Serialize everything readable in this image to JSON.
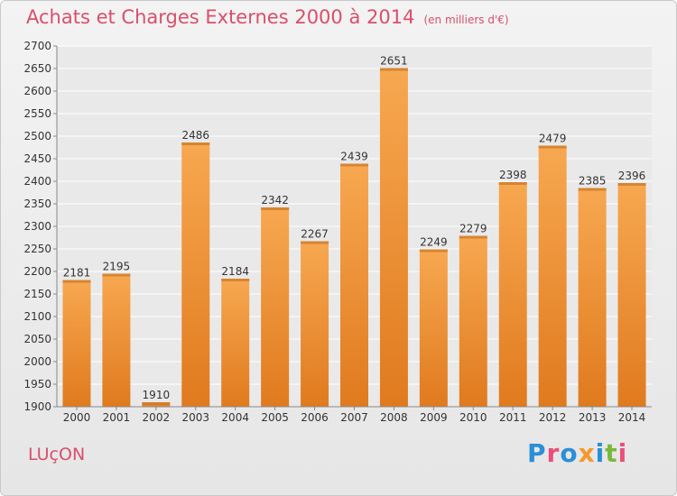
{
  "header": {
    "title": "Achats et Charges Externes 2000 à 2014",
    "subtitle": "(en milliers d'€)"
  },
  "footer": {
    "commune": "LUçON",
    "logo_letters": [
      {
        "ch": "P",
        "color": "#2a8fd6"
      },
      {
        "ch": "r",
        "color": "#e94f7a"
      },
      {
        "ch": "o",
        "color": "#2a8fd6"
      },
      {
        "ch": "x",
        "color": "#f39a2b"
      },
      {
        "ch": "i",
        "color": "#2a8fd6"
      },
      {
        "ch": "t",
        "color": "#7ab83c"
      },
      {
        "ch": "i",
        "color": "#e94f7a"
      }
    ]
  },
  "chart_data": {
    "type": "bar",
    "categories": [
      "2000",
      "2001",
      "2002",
      "2003",
      "2004",
      "2005",
      "2006",
      "2007",
      "2008",
      "2009",
      "2010",
      "2011",
      "2012",
      "2013",
      "2014"
    ],
    "values": [
      2181,
      2195,
      1910,
      2486,
      2184,
      2342,
      2267,
      2439,
      2651,
      2249,
      2279,
      2398,
      2479,
      2385,
      2396
    ],
    "ylim": [
      1900,
      2700
    ],
    "yticks": [
      1900,
      1950,
      2000,
      2050,
      2100,
      2150,
      2200,
      2250,
      2300,
      2350,
      2400,
      2450,
      2500,
      2550,
      2600,
      2650,
      2700
    ],
    "grid": true,
    "colors": {
      "bar_top": "#f7a851",
      "bar_bottom": "#e07a1e",
      "grid": "#ffffff",
      "axis": "#888888",
      "text": "#333333"
    }
  }
}
